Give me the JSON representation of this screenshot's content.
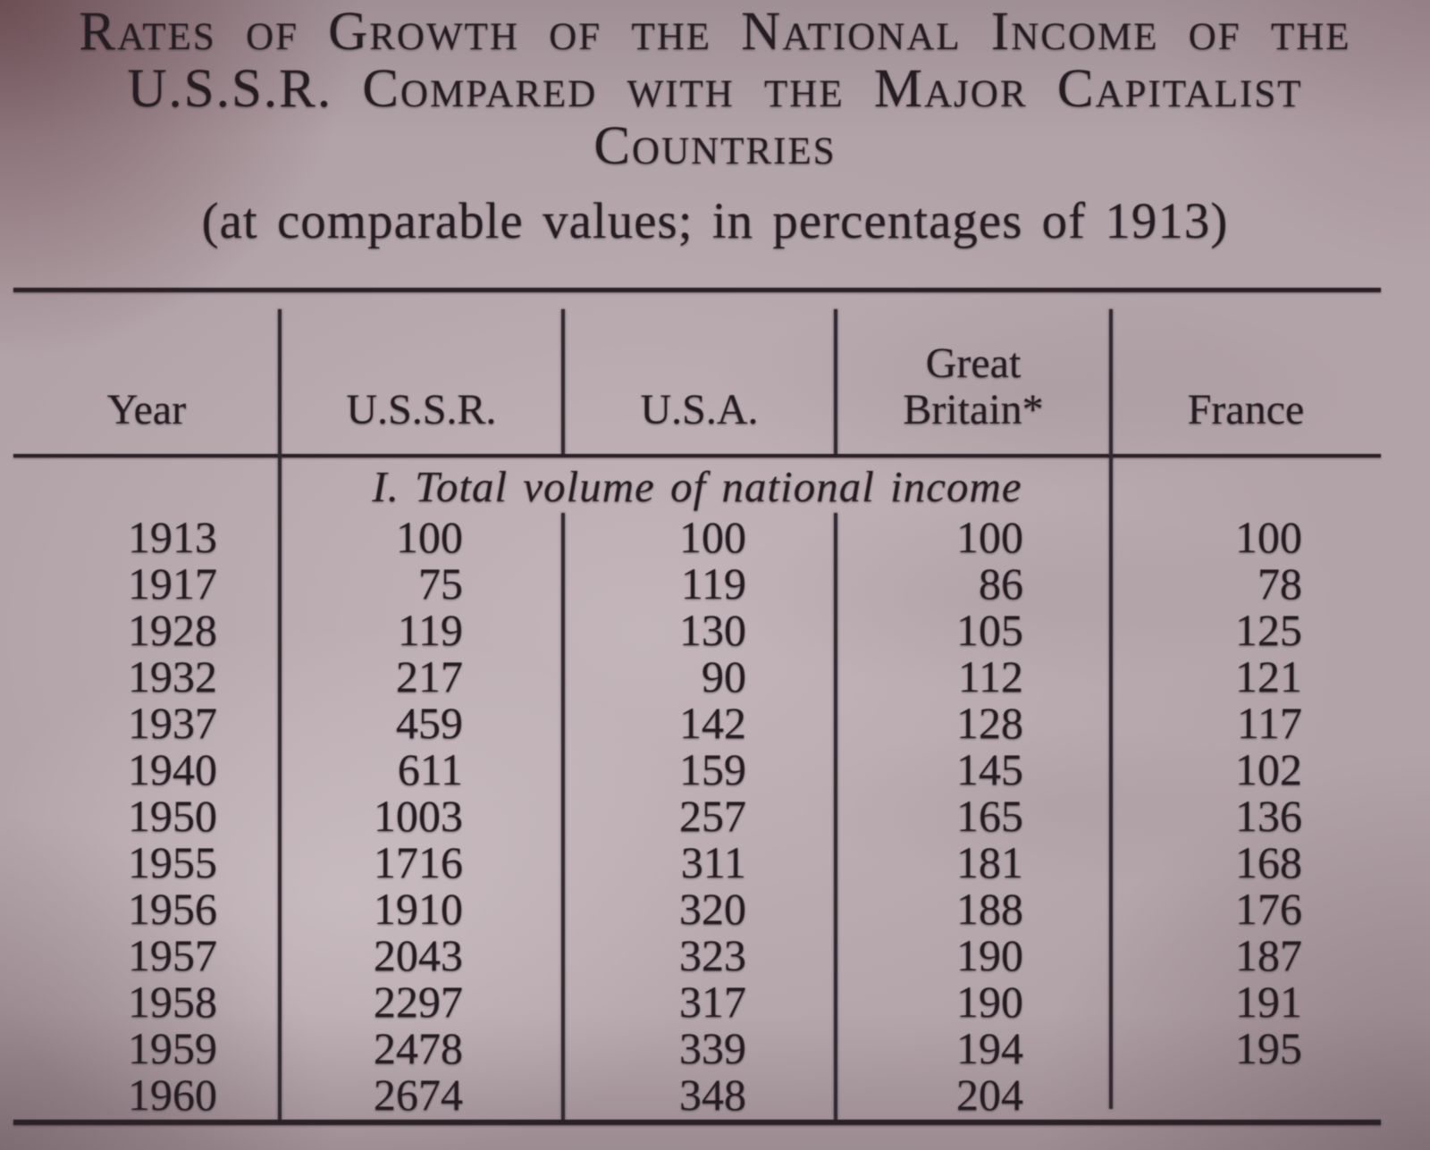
{
  "page": {
    "title_lines": [
      "Rates of Growth of the National Income of the",
      "U.S.S.R. Compared with the Major Capitalist",
      "Countries"
    ],
    "subtitle": "(at comparable values; in percentages of 1913)"
  },
  "table": {
    "columns": [
      "Year",
      "U.S.S.R.",
      "U.S.A.",
      "Great Britain*",
      "France"
    ],
    "section_heading": "I. Total volume of national income",
    "rows": [
      [
        "1913",
        "100",
        "100",
        "100",
        "100"
      ],
      [
        "1917",
        "75",
        "119",
        "86",
        "78"
      ],
      [
        "1928",
        "119",
        "130",
        "105",
        "125"
      ],
      [
        "1932",
        "217",
        "90",
        "112",
        "121"
      ],
      [
        "1937",
        "459",
        "142",
        "128",
        "117"
      ],
      [
        "1940",
        "611",
        "159",
        "145",
        "102"
      ],
      [
        "1950",
        "1003",
        "257",
        "165",
        "136"
      ],
      [
        "1955",
        "1716",
        "311",
        "181",
        "168"
      ],
      [
        "1956",
        "1910",
        "320",
        "188",
        "176"
      ],
      [
        "1957",
        "2043",
        "323",
        "190",
        "187"
      ],
      [
        "1958",
        "2297",
        "317",
        "190",
        "191"
      ],
      [
        "1959",
        "2478",
        "339",
        "194",
        "195"
      ],
      [
        "1960",
        "2674",
        "348",
        "204",
        ""
      ]
    ]
  },
  "colors": {
    "paper": "#b2a3a8",
    "ink": "#251d22"
  }
}
